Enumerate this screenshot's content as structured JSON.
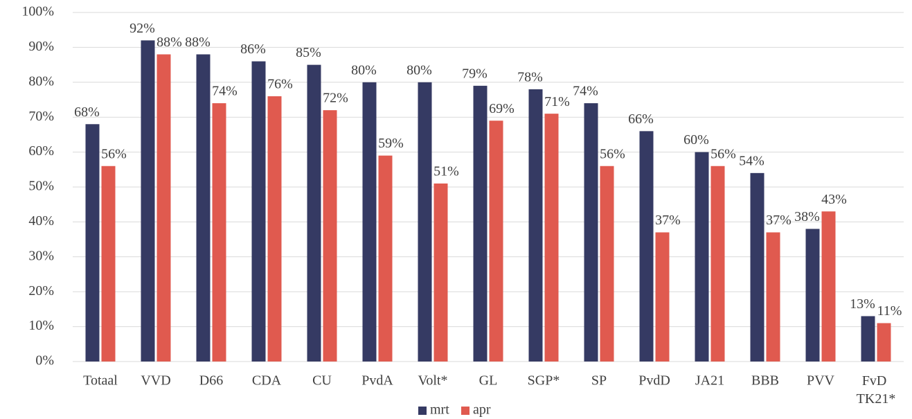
{
  "chart_data": {
    "type": "bar",
    "categories": [
      "Totaal",
      "VVD",
      "D66",
      "CDA",
      "CU",
      "PvdA",
      "Volt*",
      "GL",
      "SGP*",
      "SP",
      "PvdD",
      "JA21",
      "BBB",
      "PVV",
      "FvD TK21*"
    ],
    "series": [
      {
        "name": "mrt",
        "color": "#353a63",
        "values": [
          68,
          92,
          88,
          86,
          85,
          80,
          80,
          79,
          78,
          74,
          66,
          60,
          54,
          38,
          13
        ],
        "value_labels": [
          "68%",
          "92%",
          "88%",
          "86%",
          "85%",
          "80%",
          "80%",
          "79%",
          "78%",
          "74%",
          "66%",
          "60%",
          "54%",
          "38%",
          "13%"
        ]
      },
      {
        "name": "apr",
        "color": "#e05a4f",
        "values": [
          56,
          88,
          74,
          76,
          72,
          59,
          51,
          69,
          71,
          56,
          37,
          56,
          37,
          43,
          11
        ],
        "value_labels": [
          "56%",
          "88%",
          "74%",
          "76%",
          "72%",
          "59%",
          "51%",
          "69%",
          "71%",
          "56%",
          "37%",
          "56%",
          "37%",
          "43%",
          "11%"
        ]
      }
    ],
    "ylim": [
      0,
      100
    ],
    "yticks": [
      {
        "value": 0,
        "label": "0%"
      },
      {
        "value": 10,
        "label": "10%"
      },
      {
        "value": 20,
        "label": "20%"
      },
      {
        "value": 30,
        "label": "30%"
      },
      {
        "value": 40,
        "label": "40%"
      },
      {
        "value": 50,
        "label": "50%"
      },
      {
        "value": 60,
        "label": "60%"
      },
      {
        "value": 70,
        "label": "70%"
      },
      {
        "value": 80,
        "label": "80%"
      },
      {
        "value": 90,
        "label": "90%"
      },
      {
        "value": 100,
        "label": "100%"
      }
    ],
    "grid": true,
    "legend": "bottom"
  }
}
